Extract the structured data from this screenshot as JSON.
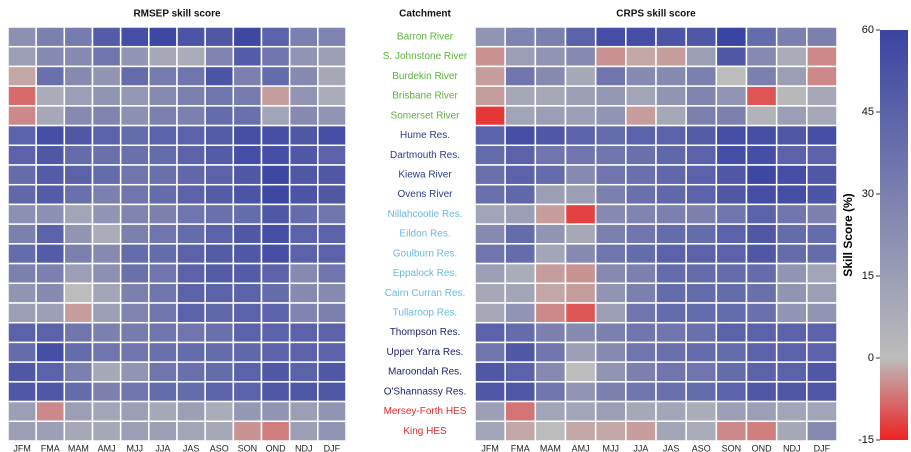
{
  "chart_data": {
    "type": "heatmap",
    "row_header": "Catchment",
    "categories": [
      "JFM",
      "FMA",
      "MAM",
      "AMJ",
      "MJJ",
      "JJA",
      "JAS",
      "ASO",
      "SON",
      "OND",
      "NDJ",
      "DJF"
    ],
    "rows": [
      "Barron River",
      "S. Johnstone River",
      "Burdekin River",
      "Brisbane River",
      "Somerset River",
      "Hume Res.",
      "Dartmouth Res.",
      "Kiewa River",
      "Ovens River",
      "Nillahcootie Res.",
      "Eildon Res.",
      "Goulburn Res.",
      "Eppalock Res.",
      "Cairn Curran Res.",
      "Tullaroop Res.",
      "Thompson Res.",
      "Upper Yarra Res.",
      "Maroondah Res.",
      "O'Shannassy Res.",
      "Mersey-Forth HES",
      "King HES"
    ],
    "row_colors": [
      "#5ab33a",
      "#5ab33a",
      "#5ab33a",
      "#5ab33a",
      "#5ab33a",
      "#2a3a8c",
      "#2a3a8c",
      "#2a3a8c",
      "#2a3a8c",
      "#6ab8e0",
      "#6ab8e0",
      "#6ab8e0",
      "#6ab8e0",
      "#6ab8e0",
      "#6ab8e0",
      "#1c2370",
      "#1c2370",
      "#1c2370",
      "#1c2370",
      "#e8252a",
      "#e8252a"
    ],
    "clim": [
      -15,
      60
    ],
    "cticks": [
      60,
      45,
      30,
      15,
      0,
      -15
    ],
    "colorbar_label": "Skill Score (%)",
    "colorscale": [
      {
        "value": -15,
        "color": "#ee2222"
      },
      {
        "value": 0,
        "color": "#bcbcbc"
      },
      {
        "value": 60,
        "color": "#3a44a2"
      }
    ],
    "panels": [
      {
        "title": "RMSEP skill score",
        "values": [
          [
            22,
            30,
            32,
            48,
            55,
            58,
            52,
            50,
            58,
            45,
            30,
            28
          ],
          [
            15,
            25,
            25,
            35,
            20,
            10,
            8,
            28,
            48,
            35,
            20,
            15
          ],
          [
            -2,
            38,
            25,
            20,
            40,
            32,
            35,
            52,
            30,
            40,
            25,
            10
          ],
          [
            -8,
            8,
            15,
            20,
            18,
            25,
            30,
            35,
            32,
            -3,
            20,
            8
          ],
          [
            -5,
            10,
            25,
            28,
            22,
            30,
            30,
            40,
            38,
            12,
            25,
            20
          ],
          [
            45,
            55,
            50,
            45,
            40,
            45,
            45,
            48,
            55,
            55,
            50,
            55
          ],
          [
            45,
            50,
            40,
            38,
            38,
            40,
            45,
            48,
            55,
            55,
            50,
            45
          ],
          [
            40,
            48,
            45,
            40,
            35,
            38,
            42,
            45,
            50,
            58,
            50,
            50
          ],
          [
            42,
            48,
            38,
            30,
            35,
            40,
            45,
            48,
            52,
            58,
            52,
            50
          ],
          [
            22,
            22,
            12,
            20,
            28,
            30,
            35,
            38,
            40,
            50,
            40,
            35
          ],
          [
            30,
            45,
            20,
            8,
            30,
            35,
            40,
            45,
            50,
            55,
            45,
            45
          ],
          [
            40,
            48,
            30,
            25,
            40,
            40,
            45,
            48,
            50,
            55,
            45,
            45
          ],
          [
            30,
            30,
            15,
            22,
            38,
            35,
            45,
            48,
            48,
            45,
            25,
            35
          ],
          [
            20,
            25,
            0,
            12,
            30,
            35,
            45,
            45,
            45,
            40,
            25,
            25
          ],
          [
            15,
            15,
            -3,
            15,
            28,
            35,
            45,
            42,
            45,
            45,
            28,
            30
          ],
          [
            45,
            45,
            35,
            30,
            32,
            35,
            35,
            38,
            45,
            45,
            45,
            45
          ],
          [
            40,
            55,
            40,
            35,
            35,
            38,
            40,
            40,
            42,
            45,
            45,
            45
          ],
          [
            50,
            45,
            30,
            10,
            20,
            35,
            38,
            40,
            45,
            50,
            45,
            50
          ],
          [
            50,
            50,
            40,
            30,
            35,
            40,
            40,
            45,
            45,
            50,
            50,
            50
          ],
          [
            15,
            -5,
            15,
            12,
            15,
            10,
            15,
            8,
            18,
            20,
            15,
            20
          ],
          [
            15,
            15,
            10,
            10,
            15,
            15,
            12,
            10,
            -4,
            -6,
            15,
            20
          ]
        ]
      },
      {
        "title": "CRPS skill score",
        "values": [
          [
            20,
            28,
            30,
            45,
            55,
            55,
            52,
            50,
            60,
            40,
            30,
            30
          ],
          [
            -4,
            15,
            20,
            25,
            -4,
            -2,
            -3,
            15,
            50,
            25,
            8,
            -5
          ],
          [
            -3,
            35,
            25,
            10,
            35,
            25,
            25,
            30,
            0,
            30,
            15,
            -5
          ],
          [
            -3,
            10,
            10,
            15,
            18,
            12,
            20,
            28,
            20,
            -10,
            2,
            10
          ],
          [
            -13,
            12,
            15,
            15,
            20,
            -3,
            10,
            30,
            30,
            5,
            15,
            10
          ],
          [
            45,
            55,
            50,
            45,
            40,
            45,
            45,
            48,
            55,
            55,
            50,
            55
          ],
          [
            40,
            45,
            35,
            35,
            35,
            38,
            42,
            45,
            55,
            55,
            45,
            45
          ],
          [
            38,
            45,
            40,
            25,
            35,
            38,
            42,
            45,
            50,
            58,
            55,
            50
          ],
          [
            38,
            42,
            15,
            15,
            30,
            38,
            42,
            45,
            50,
            55,
            55,
            52
          ],
          [
            12,
            15,
            -3,
            -12,
            25,
            28,
            30,
            30,
            35,
            45,
            35,
            30
          ],
          [
            25,
            40,
            20,
            10,
            30,
            35,
            40,
            40,
            45,
            50,
            40,
            40
          ],
          [
            35,
            40,
            12,
            25,
            35,
            40,
            45,
            45,
            45,
            50,
            40,
            40
          ],
          [
            15,
            8,
            -3,
            -4,
            25,
            30,
            40,
            40,
            40,
            40,
            20,
            12
          ],
          [
            10,
            12,
            -2,
            -3,
            20,
            30,
            40,
            40,
            40,
            38,
            20,
            15
          ],
          [
            10,
            20,
            -5,
            -10,
            15,
            35,
            40,
            40,
            40,
            38,
            20,
            20
          ],
          [
            45,
            40,
            30,
            25,
            30,
            35,
            35,
            38,
            45,
            45,
            45,
            45
          ],
          [
            35,
            50,
            35,
            15,
            25,
            35,
            38,
            40,
            40,
            45,
            45,
            45
          ],
          [
            50,
            45,
            25,
            0,
            20,
            30,
            35,
            35,
            40,
            45,
            45,
            50
          ],
          [
            50,
            50,
            35,
            20,
            30,
            35,
            38,
            40,
            45,
            50,
            50,
            50
          ],
          [
            15,
            -7,
            12,
            12,
            15,
            10,
            12,
            8,
            15,
            15,
            12,
            12
          ],
          [
            12,
            -2,
            0,
            -2,
            -2,
            -3,
            12,
            8,
            -5,
            -6,
            10,
            25
          ]
        ]
      }
    ]
  }
}
